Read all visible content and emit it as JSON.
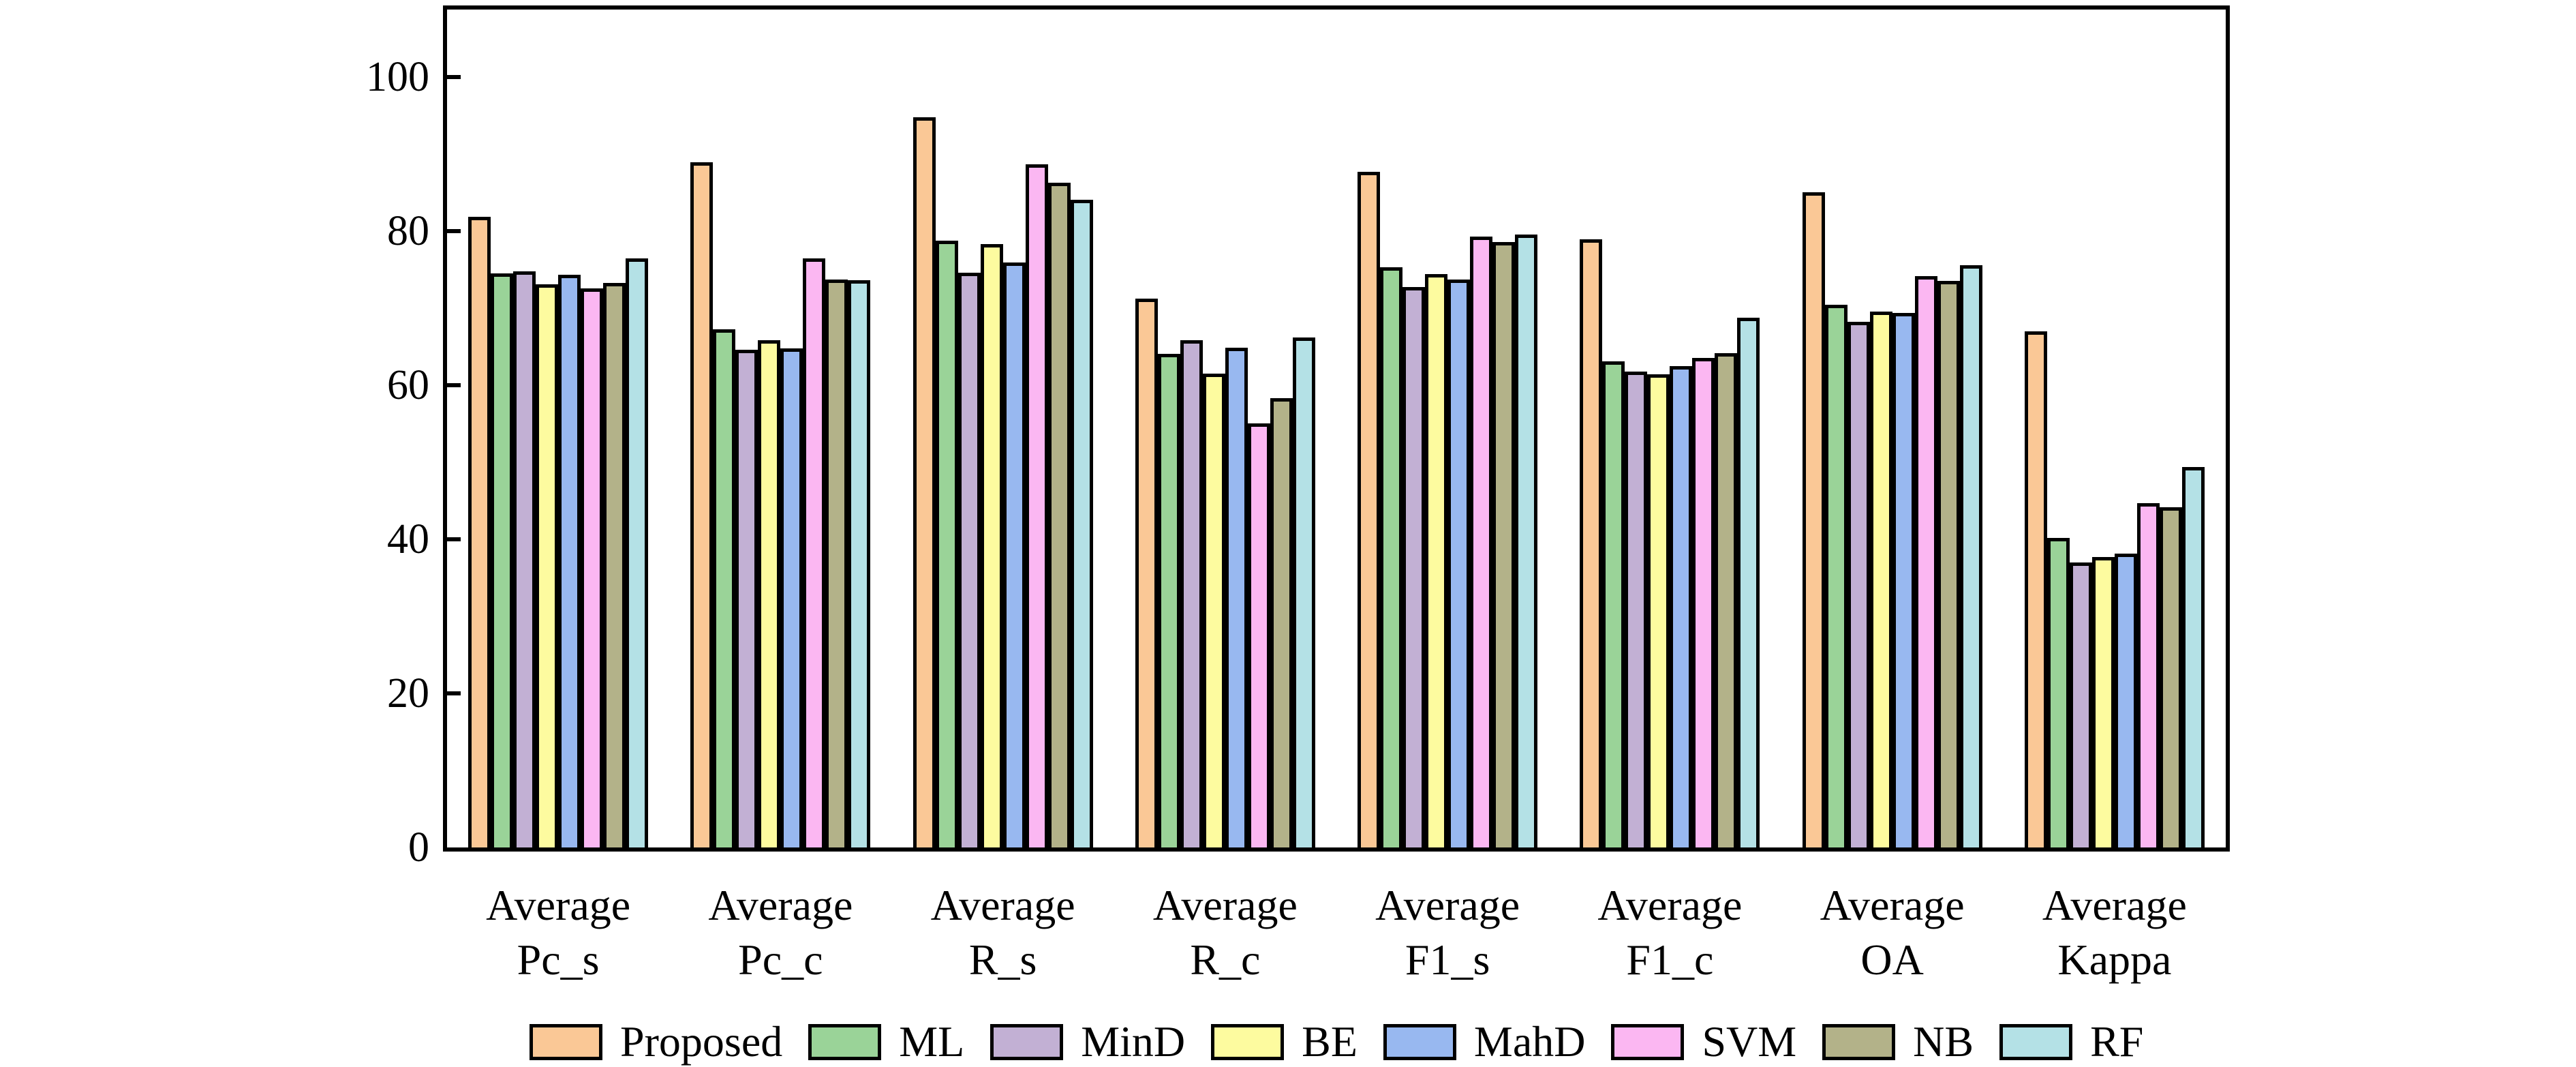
{
  "figure": {
    "background_color": "#ffffff",
    "axis_color": "#000000"
  },
  "chart_data": {
    "type": "bar",
    "title": "",
    "xlabel": "",
    "ylabel": "",
    "grid": false,
    "legend_position": "bottom",
    "ylim": [
      0,
      108.8
    ],
    "yticks": [
      0,
      20,
      40,
      60,
      80,
      100
    ],
    "categories": [
      "Average Pc_s",
      "Average Pc_c",
      "Average R_s",
      "Average R_c",
      "Average F1_s",
      "Average F1_c",
      "Average OA",
      "Average Kappa"
    ],
    "category_lines": [
      [
        "Average",
        "Pc_s"
      ],
      [
        "Average",
        "Pc_c"
      ],
      [
        "Average",
        "R_s"
      ],
      [
        "Average",
        "R_c"
      ],
      [
        "Average",
        "F1_s"
      ],
      [
        "Average",
        "F1_c"
      ],
      [
        "Average",
        "OA"
      ],
      [
        "Average",
        "Kappa"
      ]
    ],
    "series": [
      {
        "name": "Proposed",
        "color": "#FAC896",
        "values": [
          81.9,
          88.9,
          94.8,
          71.2,
          87.7,
          78.9,
          85.0,
          67.0
        ]
      },
      {
        "name": "ML",
        "color": "#9AD398",
        "values": [
          74.5,
          67.3,
          78.8,
          64.1,
          75.3,
          63.1,
          70.4,
          40.2
        ]
      },
      {
        "name": "MinD",
        "color": "#C2B0D4",
        "values": [
          74.8,
          64.6,
          74.6,
          65.8,
          72.7,
          61.8,
          68.2,
          37.0
        ]
      },
      {
        "name": "BE",
        "color": "#FDFB9F",
        "values": [
          73.1,
          65.8,
          78.3,
          61.5,
          74.4,
          61.4,
          69.6,
          37.7
        ]
      },
      {
        "name": "MahD",
        "color": "#98B8F0",
        "values": [
          74.3,
          64.8,
          75.9,
          64.9,
          73.7,
          62.5,
          69.4,
          38.1
        ]
      },
      {
        "name": "SVM",
        "color": "#FBB7F2",
        "values": [
          72.6,
          76.5,
          88.7,
          55.0,
          79.3,
          63.5,
          74.2,
          44.7
        ]
      },
      {
        "name": "NB",
        "color": "#B3B289",
        "values": [
          73.3,
          73.7,
          86.3,
          58.3,
          78.6,
          64.2,
          73.5,
          44.2
        ]
      },
      {
        "name": "RF",
        "color": "#B4E1E6",
        "values": [
          76.5,
          73.6,
          84.1,
          66.2,
          79.6,
          68.8,
          75.6,
          49.4
        ]
      }
    ]
  }
}
